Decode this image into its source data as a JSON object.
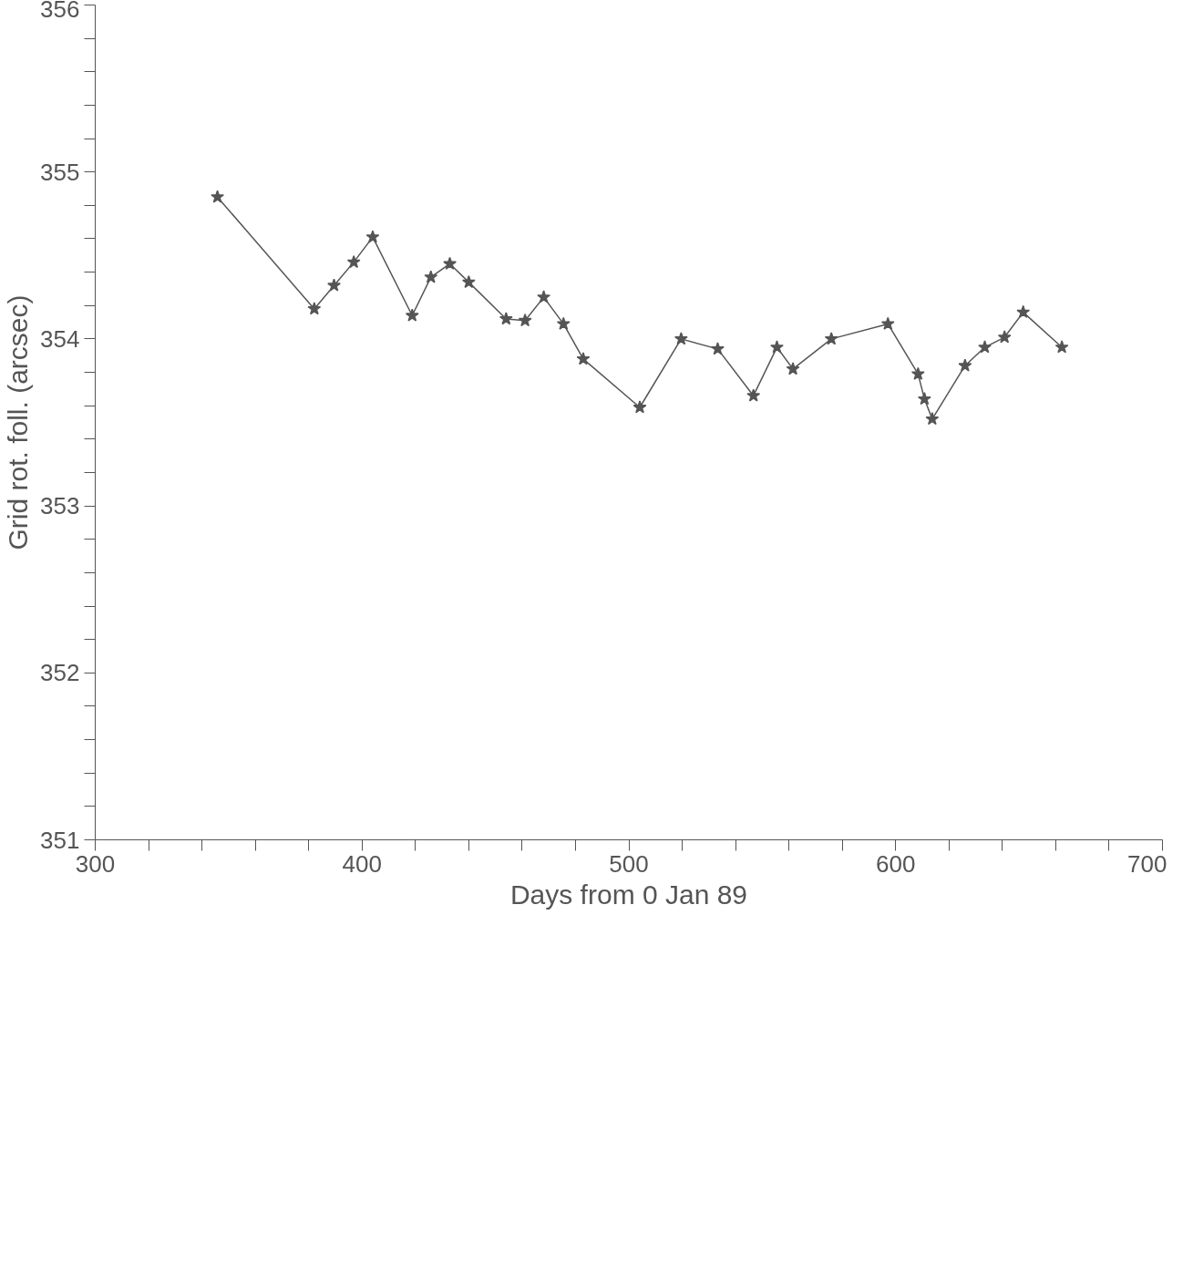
{
  "chart_data": {
    "type": "line",
    "xlabel": "Days from 0 Jan 89",
    "ylabel": "Grid rot. foll. (arcsec)",
    "x": [
      345.8,
      382.1,
      389.5,
      396.9,
      404.0,
      418.8,
      425.8,
      432.9,
      440.0,
      454.0,
      461.1,
      468.1,
      475.5,
      482.9,
      504.1,
      519.6,
      533.3,
      546.7,
      555.5,
      561.5,
      575.9,
      597.1,
      608.4,
      610.8,
      613.7,
      626.0,
      633.4,
      640.8,
      647.8,
      662.3
    ],
    "series": [
      {
        "color": "#555555",
        "values": [
          354.85,
          354.18,
          354.32,
          354.46,
          354.61,
          354.14,
          354.37,
          354.45,
          354.34,
          354.12,
          354.11,
          354.25,
          354.09,
          353.88,
          353.59,
          354.0,
          353.94,
          353.66,
          353.95,
          353.82,
          354.0,
          354.09,
          353.79,
          353.64,
          353.52,
          353.84,
          353.95,
          354.01,
          354.16,
          353.95
        ]
      }
    ],
    "xlim": [
      300,
      700
    ],
    "xticks": [
      300,
      {
        "value": 320,
        "label": null
      },
      {
        "value": 340,
        "label": null
      },
      {
        "value": 360,
        "label": null
      },
      {
        "value": 380,
        "label": null
      },
      400,
      {
        "value": 420,
        "label": null
      },
      {
        "value": 440,
        "label": null
      },
      {
        "value": 460,
        "label": null
      },
      {
        "value": 480,
        "label": null
      },
      500,
      {
        "value": 520,
        "label": null
      },
      {
        "value": 540,
        "label": null
      },
      {
        "value": 560,
        "label": null
      },
      {
        "value": 580,
        "label": null
      },
      600,
      {
        "value": 620,
        "label": null
      },
      {
        "value": 640,
        "label": null
      },
      {
        "value": 660,
        "label": null
      },
      {
        "value": 680,
        "label": null
      },
      700
    ],
    "ylim": [
      351,
      356
    ],
    "yticks": [
      351,
      {
        "value": 351.2,
        "label": null
      },
      {
        "value": 351.4,
        "label": null
      },
      {
        "value": 351.6,
        "label": null
      },
      {
        "value": 351.8,
        "label": null
      },
      352,
      {
        "value": 352.2,
        "label": null
      },
      {
        "value": 352.4,
        "label": null
      },
      {
        "value": 352.6,
        "label": null
      },
      {
        "value": 352.8,
        "label": null
      },
      353,
      {
        "value": 353.2,
        "label": null
      },
      {
        "value": 353.4,
        "label": null
      },
      {
        "value": 353.6,
        "label": null
      },
      {
        "value": 353.8,
        "label": null
      },
      354,
      {
        "value": 354.2,
        "label": null
      },
      {
        "value": 354.4,
        "label": null
      },
      {
        "value": 354.6,
        "label": null
      },
      {
        "value": 354.8,
        "label": null
      },
      355,
      {
        "value": 355.2,
        "label": null
      },
      {
        "value": 355.4,
        "label": null
      },
      {
        "value": 355.6,
        "label": null
      },
      {
        "value": 355.8,
        "label": null
      },
      356
    ],
    "grid": false,
    "marker": "star",
    "line_style": "solid"
  }
}
